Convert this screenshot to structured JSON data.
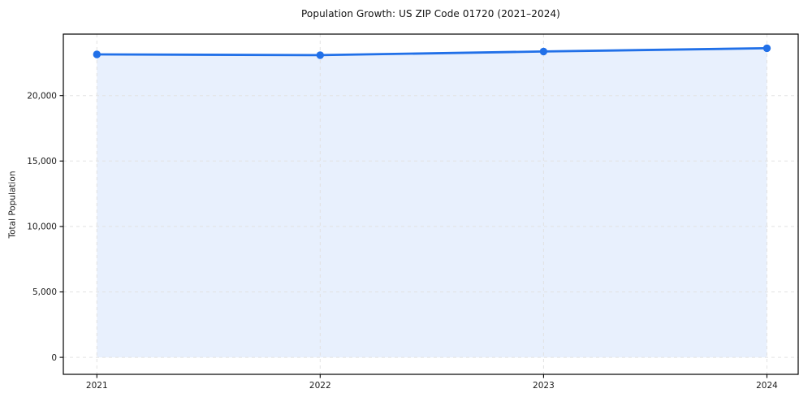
{
  "chart_data": {
    "type": "area",
    "title": "Population Growth: US ZIP Code 01720 (2021–2024)",
    "xlabel": "",
    "ylabel": "Total Population",
    "x": [
      2021,
      2022,
      2023,
      2024
    ],
    "x_tick_labels": [
      "2021",
      "2022",
      "2023",
      "2024"
    ],
    "series": [
      {
        "name": "Total Population",
        "values": [
          23150,
          23090,
          23370,
          23620
        ]
      }
    ],
    "y_ticks": [
      0,
      5000,
      10000,
      15000,
      20000
    ],
    "y_tick_labels": [
      "0",
      "5,000",
      "10,000",
      "15,000",
      "20,000"
    ],
    "xlim": [
      2020.85,
      2024.14
    ],
    "ylim": [
      -1300,
      24700
    ],
    "grid": true,
    "grid_style": "dashed",
    "legend": "none",
    "marker": "circle",
    "fill_opacity": 0.1,
    "colors": {
      "line": "#2170e8",
      "fill": "#2170e8",
      "grid": "#e2e2e2",
      "axis": "#000000",
      "text": "#1a1a1a",
      "background": "#ffffff"
    }
  }
}
